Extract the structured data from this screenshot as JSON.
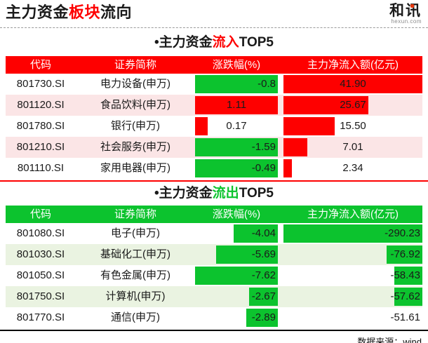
{
  "header": {
    "title_parts": [
      "主力资金",
      "板块",
      "流向"
    ],
    "title_accent": "#fe0000",
    "logo": {
      "text": "和讯",
      "sub": "hexun.com"
    }
  },
  "footer": {
    "source": "数据来源：wind"
  },
  "colors": {
    "red": "#fe0000",
    "green": "#0cc32e",
    "pink_row": "#fbe5e6",
    "green_row": "#eaf3e1"
  },
  "tables": [
    {
      "title_parts": [
        "•主力资金",
        "流入",
        "TOP5"
      ],
      "accent": "#fe0000",
      "header_bg": "#fe0000",
      "columns": [
        "代码",
        "证券简称",
        "涨跌幅(%)",
        "主力净流入额(亿元)"
      ],
      "rows": [
        {
          "code": "801730.SI",
          "name": "电力设备(申万)",
          "chg": "-0.8",
          "chg_bar": "100%",
          "chg_color": "#0cc32e",
          "chg_align": "right",
          "amt": "41.90",
          "amt_bar": "100%",
          "amt_color": "#fe0000",
          "amt_align": "center"
        },
        {
          "code": "801120.SI",
          "name": "食品饮料(申万)",
          "chg": "1.11",
          "chg_bar": "100%",
          "chg_color": "#fe0000",
          "chg_align": "center",
          "amt": "25.67",
          "amt_bar": "61%",
          "amt_color": "#fe0000",
          "amt_align": "center"
        },
        {
          "code": "801780.SI",
          "name": "银行(申万)",
          "chg": "0.17",
          "chg_bar": "15%",
          "chg_color": "#fe0000",
          "chg_align": "center",
          "amt": "15.50",
          "amt_bar": "37%",
          "amt_color": "#fe0000",
          "amt_align": "center"
        },
        {
          "code": "801210.SI",
          "name": "社会服务(申万)",
          "chg": "-1.59",
          "chg_bar": "100%",
          "chg_color": "#0cc32e",
          "chg_align": "right",
          "amt": "7.01",
          "amt_bar": "17%",
          "amt_color": "#fe0000",
          "amt_align": "center"
        },
        {
          "code": "801110.SI",
          "name": "家用电器(申万)",
          "chg": "-0.49",
          "chg_bar": "100%",
          "chg_color": "#0cc32e",
          "chg_align": "right",
          "amt": "2.34",
          "amt_bar": "6%",
          "amt_color": "#fe0000",
          "amt_align": "center"
        }
      ]
    },
    {
      "title_parts": [
        "•主力资金",
        "流出",
        "TOP5"
      ],
      "accent": "#0cc32e",
      "header_bg": "#0cc32e",
      "columns": [
        "代码",
        "证券简称",
        "涨跌幅(%)",
        "主力净流入额(亿元)"
      ],
      "rows": [
        {
          "code": "801080.SI",
          "name": "电子(申万)",
          "chg": "-4.04",
          "chg_bar": "53%",
          "chg_color": "#0cc32e",
          "chg_align": "right",
          "amt": "-290.23",
          "amt_bar": "100%",
          "amt_color": "#0cc32e",
          "amt_align": "right"
        },
        {
          "code": "801030.SI",
          "name": "基础化工(申万)",
          "chg": "-5.69",
          "chg_bar": "75%",
          "chg_color": "#0cc32e",
          "chg_align": "right",
          "amt": "-76.92",
          "amt_bar": "26%",
          "amt_color": "#0cc32e",
          "amt_align": "right"
        },
        {
          "code": "801050.SI",
          "name": "有色金属(申万)",
          "chg": "-7.62",
          "chg_bar": "100%",
          "chg_color": "#0cc32e",
          "chg_align": "right",
          "amt": "-58.43",
          "amt_bar": "20%",
          "amt_color": "#0cc32e",
          "amt_align": "right"
        },
        {
          "code": "801750.SI",
          "name": "计算机(申万)",
          "chg": "-2.67",
          "chg_bar": "35%",
          "chg_color": "#0cc32e",
          "chg_align": "right",
          "amt": "-57.62",
          "amt_bar": "20%",
          "amt_color": "#0cc32e",
          "amt_align": "right"
        },
        {
          "code": "801770.SI",
          "name": "通信(申万)",
          "chg": "-2.89",
          "chg_bar": "38%",
          "chg_color": "#0cc32e",
          "chg_align": "right",
          "amt": "-51.61",
          "amt_bar": "0%",
          "amt_color": "#0cc32e",
          "amt_align": "right"
        }
      ]
    }
  ],
  "chart_data": [
    {
      "type": "table",
      "title": "主力资金流入TOP5",
      "columns": [
        "代码",
        "证券简称",
        "涨跌幅(%)",
        "主力净流入额(亿元)"
      ],
      "rows": [
        [
          "801730.SI",
          "电力设备(申万)",
          -0.8,
          41.9
        ],
        [
          "801120.SI",
          "食品饮料(申万)",
          1.11,
          25.67
        ],
        [
          "801780.SI",
          "银行(申万)",
          0.17,
          15.5
        ],
        [
          "801210.SI",
          "社会服务(申万)",
          -1.59,
          7.01
        ],
        [
          "801110.SI",
          "家用电器(申万)",
          -0.49,
          2.34
        ]
      ],
      "layout": "data bars: net-inflow bars anchored left, scaled to max 41.90, red; negative change bars full-width green, positive change bars red scaled to 1.11"
    },
    {
      "type": "table",
      "title": "主力资金流出TOP5",
      "columns": [
        "代码",
        "证券简称",
        "涨跌幅(%)",
        "主力净流入额(亿元)"
      ],
      "rows": [
        [
          "801080.SI",
          "电子(申万)",
          -4.04,
          -290.23
        ],
        [
          "801030.SI",
          "基础化工(申万)",
          -5.69,
          -76.92
        ],
        [
          "801050.SI",
          "有色金属(申万)",
          -7.62,
          -58.43
        ],
        [
          "801750.SI",
          "计算机(申万)",
          -2.67,
          -57.62
        ],
        [
          "801770.SI",
          "通信(申万)",
          -2.89,
          -51.61
        ]
      ],
      "layout": "data bars: green, anchored right, change scaled to |−7.62|, amount scaled to |−290.23|; −51.61 row shows no bar"
    }
  ]
}
